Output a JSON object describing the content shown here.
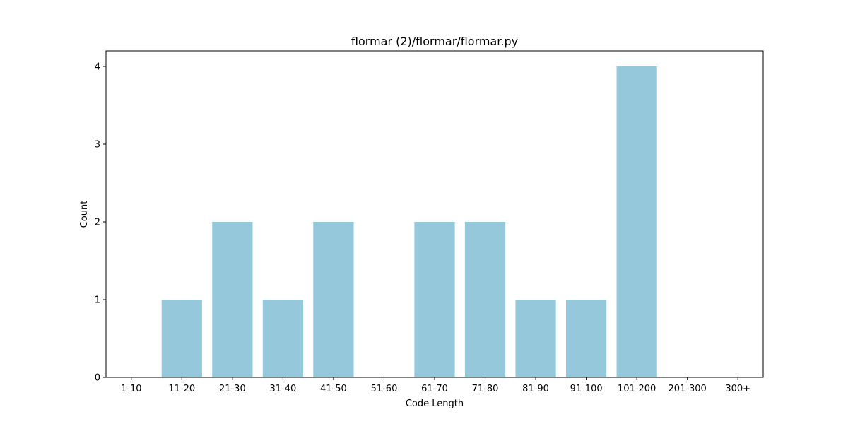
{
  "chart_data": {
    "type": "bar",
    "title": "flormar (2)/flormar/flormar.py",
    "xlabel": "Code Length",
    "ylabel": "Count",
    "categories": [
      "1-10",
      "11-20",
      "21-30",
      "31-40",
      "41-50",
      "51-60",
      "61-70",
      "71-80",
      "81-90",
      "91-100",
      "101-200",
      "201-300",
      "300+"
    ],
    "values": [
      0,
      1,
      2,
      1,
      2,
      0,
      2,
      2,
      1,
      1,
      4,
      0,
      0
    ],
    "ylim": [
      0,
      4.2
    ],
    "yticks": [
      0,
      1,
      2,
      3,
      4
    ],
    "grid": false,
    "bar_color": "#96c8dc"
  }
}
